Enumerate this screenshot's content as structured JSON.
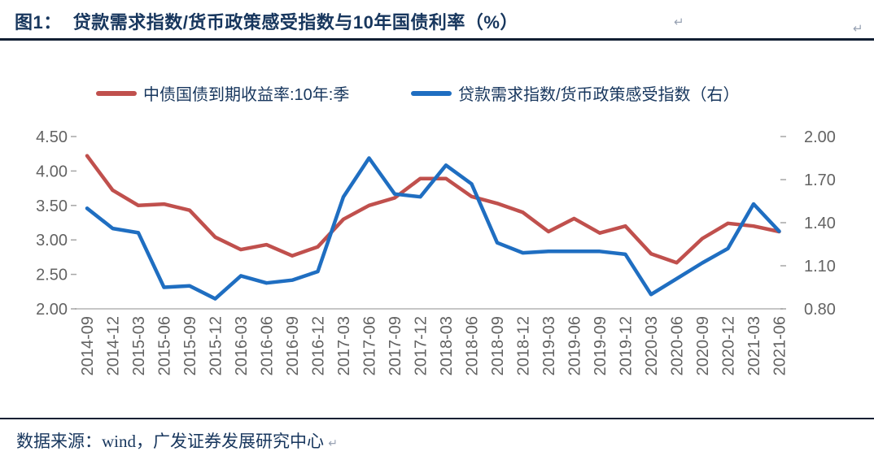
{
  "header": {
    "figure_label": "图1：",
    "title": "贷款需求指数/货币政策感受指数与10年国债利率（%）",
    "paragraph_mark": "↵"
  },
  "legend": [
    {
      "label": "中债国债到期收益率:10年:季",
      "color": "#C0504D"
    },
    {
      "label": "贷款需求指数/货币政策感受指数（右）",
      "color": "#1F6EC1"
    }
  ],
  "footer": {
    "text": "数据来源：wind，广发证券发展研究中心",
    "paragraph_mark": "↵"
  },
  "colors": {
    "title_text": "#17365D",
    "axis_label_gray": "#636363",
    "axis_line_gray": "#C6C6C6",
    "tick_gray": "#A6A6A6",
    "red_series": "#C0504D",
    "blue_series": "#1F6EC1"
  },
  "chart_data": {
    "type": "line",
    "title": "贷款需求指数/货币政策感受指数与10年国债利率（%）",
    "grid": false,
    "legend_position": "top",
    "categories": [
      "2014-09",
      "2014-12",
      "2015-03",
      "2015-06",
      "2015-09",
      "2015-12",
      "2016-03",
      "2016-06",
      "2016-09",
      "2016-12",
      "2017-03",
      "2017-06",
      "2017-09",
      "2017-12",
      "2018-03",
      "2018-06",
      "2018-09",
      "2018-12",
      "2019-03",
      "2019-06",
      "2019-09",
      "2019-12",
      "2020-03",
      "2020-06",
      "2020-09",
      "2020-12",
      "2021-03",
      "2021-06"
    ],
    "series": [
      {
        "name": "中债国债到期收益率:10年:季",
        "axis": "left",
        "color": "#C0504D",
        "values": [
          4.22,
          3.72,
          3.5,
          3.52,
          3.43,
          3.04,
          2.86,
          2.93,
          2.77,
          2.9,
          3.3,
          3.5,
          3.61,
          3.89,
          3.89,
          3.63,
          3.53,
          3.4,
          3.12,
          3.31,
          3.1,
          3.2,
          2.8,
          2.67,
          3.02,
          3.24,
          3.2,
          3.12
        ]
      },
      {
        "name": "贷款需求指数/货币政策感受指数（右）",
        "axis": "right",
        "color": "#1F6EC1",
        "values": [
          1.5,
          1.36,
          1.33,
          0.95,
          0.96,
          0.87,
          1.03,
          0.98,
          1.0,
          1.06,
          1.58,
          1.85,
          1.6,
          1.58,
          1.8,
          1.67,
          1.26,
          1.19,
          1.2,
          1.2,
          1.2,
          1.18,
          0.9,
          1.01,
          1.12,
          1.22,
          1.53,
          1.34
        ]
      }
    ],
    "left_axis": {
      "min": 2.0,
      "max": 4.5,
      "ticks": [
        "4.50",
        "4.00",
        "3.50",
        "3.00",
        "2.50",
        "2.00"
      ]
    },
    "right_axis": {
      "min": 0.8,
      "max": 2.0,
      "ticks": [
        "2.00",
        "1.70",
        "1.40",
        "1.10",
        "0.80"
      ]
    }
  }
}
